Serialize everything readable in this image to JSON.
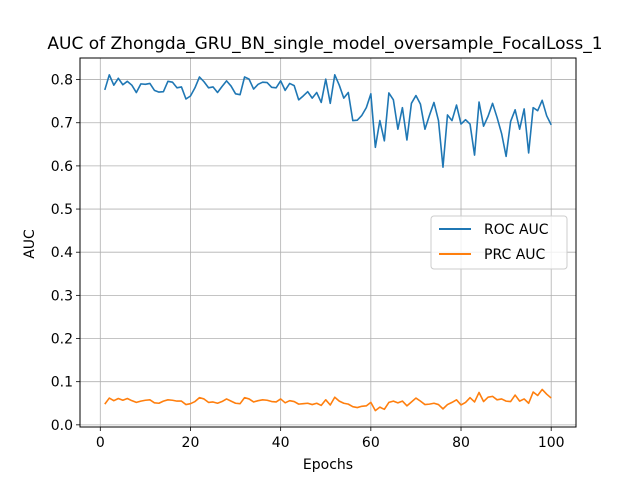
{
  "chart_data": {
    "type": "line",
    "title": "AUC of Zhongda_GRU_BN_single_model_oversample_FocalLoss_1",
    "xlabel": "Epochs",
    "ylabel": "AUC",
    "xlim": [
      -4.5,
      105.5
    ],
    "ylim": [
      -0.005,
      0.85
    ],
    "xticks": [
      0,
      20,
      40,
      60,
      80,
      100
    ],
    "yticks": [
      0.0,
      0.1,
      0.2,
      0.3,
      0.4,
      0.5,
      0.6,
      0.7,
      0.8
    ],
    "ytick_labels": [
      "0.0",
      "0.1",
      "0.2",
      "0.3",
      "0.4",
      "0.5",
      "0.6",
      "0.7",
      "0.8"
    ],
    "grid": true,
    "legend_position": "center-right",
    "x": [
      1,
      2,
      3,
      4,
      5,
      6,
      7,
      8,
      9,
      10,
      11,
      12,
      13,
      14,
      15,
      16,
      17,
      18,
      19,
      20,
      21,
      22,
      23,
      24,
      25,
      26,
      27,
      28,
      29,
      30,
      31,
      32,
      33,
      34,
      35,
      36,
      37,
      38,
      39,
      40,
      41,
      42,
      43,
      44,
      45,
      46,
      47,
      48,
      49,
      50,
      51,
      52,
      53,
      54,
      55,
      56,
      57,
      58,
      59,
      60,
      61,
      62,
      63,
      64,
      65,
      66,
      67,
      68,
      69,
      70,
      71,
      72,
      73,
      74,
      75,
      76,
      77,
      78,
      79,
      80,
      81,
      82,
      83,
      84,
      85,
      86,
      87,
      88,
      89,
      90,
      91,
      92,
      93,
      94,
      95,
      96,
      97,
      98,
      99,
      100
    ],
    "series": [
      {
        "name": "ROC AUC",
        "color": "#1f77b4",
        "values": [
          0.776,
          0.811,
          0.787,
          0.803,
          0.788,
          0.796,
          0.787,
          0.77,
          0.79,
          0.789,
          0.791,
          0.775,
          0.771,
          0.772,
          0.796,
          0.794,
          0.781,
          0.783,
          0.755,
          0.762,
          0.781,
          0.806,
          0.795,
          0.781,
          0.783,
          0.77,
          0.784,
          0.797,
          0.785,
          0.767,
          0.765,
          0.806,
          0.801,
          0.778,
          0.789,
          0.794,
          0.793,
          0.782,
          0.781,
          0.797,
          0.775,
          0.791,
          0.786,
          0.753,
          0.762,
          0.772,
          0.757,
          0.77,
          0.747,
          0.801,
          0.745,
          0.811,
          0.787,
          0.757,
          0.77,
          0.705,
          0.706,
          0.717,
          0.735,
          0.767,
          0.643,
          0.705,
          0.658,
          0.769,
          0.753,
          0.685,
          0.735,
          0.66,
          0.745,
          0.763,
          0.743,
          0.685,
          0.717,
          0.747,
          0.705,
          0.597,
          0.718,
          0.705,
          0.741,
          0.697,
          0.707,
          0.697,
          0.625,
          0.748,
          0.692,
          0.715,
          0.745,
          0.712,
          0.675,
          0.622,
          0.703,
          0.73,
          0.685,
          0.732,
          0.63,
          0.735,
          0.728,
          0.752,
          0.716,
          0.695
        ]
      },
      {
        "name": "PRC AUC",
        "color": "#ff7f0e",
        "values": [
          0.048,
          0.062,
          0.056,
          0.061,
          0.057,
          0.061,
          0.056,
          0.052,
          0.055,
          0.057,
          0.058,
          0.051,
          0.05,
          0.055,
          0.058,
          0.057,
          0.055,
          0.055,
          0.047,
          0.049,
          0.054,
          0.063,
          0.06,
          0.052,
          0.053,
          0.05,
          0.054,
          0.06,
          0.055,
          0.05,
          0.049,
          0.063,
          0.06,
          0.053,
          0.056,
          0.058,
          0.057,
          0.054,
          0.053,
          0.06,
          0.051,
          0.056,
          0.054,
          0.048,
          0.049,
          0.05,
          0.047,
          0.05,
          0.045,
          0.058,
          0.046,
          0.064,
          0.055,
          0.05,
          0.048,
          0.042,
          0.04,
          0.043,
          0.044,
          0.052,
          0.033,
          0.041,
          0.036,
          0.052,
          0.055,
          0.051,
          0.055,
          0.044,
          0.053,
          0.062,
          0.055,
          0.047,
          0.048,
          0.05,
          0.047,
          0.037,
          0.047,
          0.052,
          0.058,
          0.046,
          0.052,
          0.063,
          0.053,
          0.075,
          0.054,
          0.064,
          0.066,
          0.058,
          0.06,
          0.055,
          0.054,
          0.069,
          0.055,
          0.06,
          0.05,
          0.076,
          0.068,
          0.082,
          0.071,
          0.062
        ]
      }
    ]
  }
}
